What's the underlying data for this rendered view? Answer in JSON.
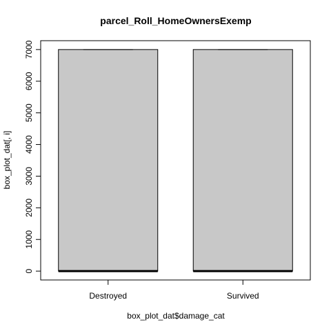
{
  "chart_data": {
    "type": "box",
    "title": "parcel_Roll_HomeOwnersExemp",
    "xlabel": "box_plot_dat$damage_cat",
    "ylabel": "box_plot_dat[, i]",
    "categories": [
      "Destroyed",
      "Survived"
    ],
    "boxes": [
      {
        "name": "Destroyed",
        "min": 0,
        "q1": 0,
        "median": 0,
        "q3": 7000,
        "max": 7000
      },
      {
        "name": "Survived",
        "min": 0,
        "q1": 0,
        "median": 0,
        "q3": 7000,
        "max": 7000
      }
    ],
    "yticks": [
      0,
      1000,
      2000,
      3000,
      4000,
      5000,
      6000,
      7000
    ],
    "ytick_labels": [
      "0",
      "1000",
      "2000",
      "3000",
      "4000",
      "5000",
      "6000",
      "7000"
    ],
    "ylim": [
      -280,
      7280
    ],
    "box_fill": "#c8c8c8",
    "grid": false
  }
}
